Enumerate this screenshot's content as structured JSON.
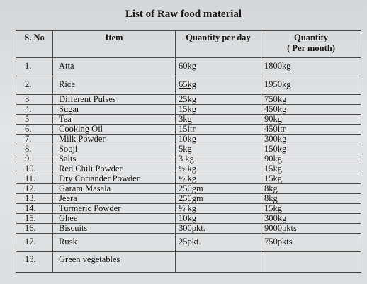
{
  "document": {
    "title": "List of Raw food material"
  },
  "table": {
    "headers": {
      "sno": "S. No",
      "item": "Item",
      "per_day": "Quantity per day",
      "per_month": "Quantity\n( Per month)"
    },
    "rows": [
      {
        "sno": "1.",
        "item": "Atta",
        "per_day": "60kg",
        "per_month": "1800kg"
      },
      {
        "sno": "2.",
        "item": "Rice",
        "per_day": "65kg",
        "per_month": "1950kg"
      },
      {
        "sno": "3",
        "item": "Different Pulses",
        "per_day": "25kg",
        "per_month": "750kg"
      },
      {
        "sno": "4.",
        "item": "Sugar",
        "per_day": "15kg",
        "per_month": "450kg"
      },
      {
        "sno": "5",
        "item": "Tea",
        "per_day": "3kg",
        "per_month": "90kg"
      },
      {
        "sno": "6.",
        "item": "Cooking Oil",
        "per_day": "15ltr",
        "per_month": "450ltr"
      },
      {
        "sno": "7.",
        "item": "Milk Powder",
        "per_day": "10kg",
        "per_month": "300kg"
      },
      {
        "sno": "8.",
        "item": "Sooji",
        "per_day": "5kg",
        "per_month": "150kg"
      },
      {
        "sno": "9.",
        "item": "Salts",
        "per_day": "3 kg",
        "per_month": "90kg"
      },
      {
        "sno": "10.",
        "item": "Red Chili Powder",
        "per_day": "½ kg",
        "per_month": "15kg"
      },
      {
        "sno": "11.",
        "item": "Dry Coriander Powder",
        "per_day": "½ kg",
        "per_month": "15kg"
      },
      {
        "sno": "12.",
        "item": "Garam Masala",
        "per_day": "250gm",
        "per_month": "8kg"
      },
      {
        "sno": "13.",
        "item": "Jeera",
        "per_day": "250gm",
        "per_month": "8kg"
      },
      {
        "sno": "14.",
        "item": "Turmeric Powder",
        "per_day": "½ kg",
        "per_month": "15kg"
      },
      {
        "sno": "15.",
        "item": "Ghee",
        "per_day": "10kg",
        "per_month": "300kg"
      },
      {
        "sno": "16.",
        "item": "Biscuits",
        "per_day": "300pkt.",
        "per_month": "9000pkts"
      },
      {
        "sno": "17.",
        "item": "Rusk",
        "per_day": "25pkt.",
        "per_month": "750pkts"
      },
      {
        "sno": "18.",
        "item": "Green vegetables",
        "per_day": "",
        "per_month": ""
      }
    ]
  }
}
